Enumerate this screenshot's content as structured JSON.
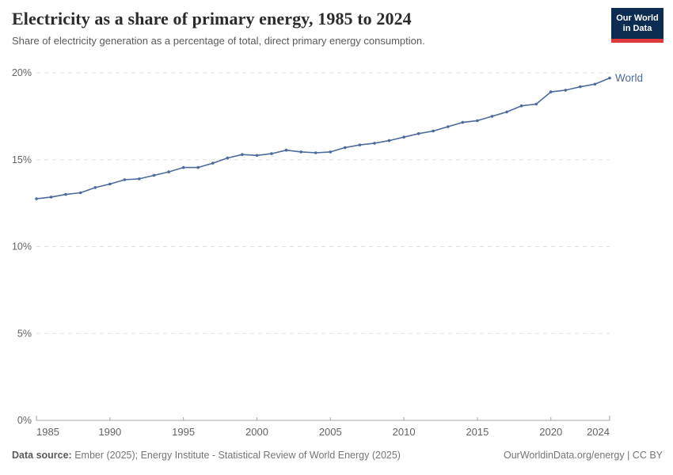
{
  "header": {
    "title": "Electricity as a share of primary energy, 1985 to 2024",
    "subtitle": "Share of electricity generation as a percentage of total, direct primary energy consumption.",
    "logo_line1": "Our World",
    "logo_line2": "in Data"
  },
  "chart_data": {
    "type": "line",
    "title": "Electricity as a share of primary energy, 1985 to 2024",
    "entity_label": "World",
    "line_color": "#4C6A9C",
    "grid": "horizontal-dashed",
    "xlim": [
      1985,
      2024
    ],
    "ylim": [
      0,
      20
    ],
    "xticks": [
      1985,
      1990,
      1995,
      2000,
      2005,
      2010,
      2015,
      2020,
      2024
    ],
    "yticks": [
      {
        "value": 0,
        "label": "0%"
      },
      {
        "value": 5,
        "label": "5%"
      },
      {
        "value": 10,
        "label": "10%"
      },
      {
        "value": 15,
        "label": "15%"
      },
      {
        "value": 20,
        "label": "20%"
      }
    ],
    "series": [
      {
        "name": "World",
        "x": [
          1985,
          1986,
          1987,
          1988,
          1989,
          1990,
          1991,
          1992,
          1993,
          1994,
          1995,
          1996,
          1997,
          1998,
          1999,
          2000,
          2001,
          2002,
          2003,
          2004,
          2005,
          2006,
          2007,
          2008,
          2009,
          2010,
          2011,
          2012,
          2013,
          2014,
          2015,
          2016,
          2017,
          2018,
          2019,
          2020,
          2021,
          2022,
          2023,
          2024
        ],
        "values": [
          12.75,
          12.85,
          13.0,
          13.1,
          13.4,
          13.6,
          13.85,
          13.9,
          14.1,
          14.3,
          14.55,
          14.55,
          14.8,
          15.1,
          15.3,
          15.25,
          15.35,
          15.55,
          15.45,
          15.4,
          15.45,
          15.7,
          15.85,
          15.95,
          16.1,
          16.3,
          16.5,
          16.65,
          16.9,
          17.15,
          17.25,
          17.5,
          17.75,
          18.1,
          18.2,
          18.9,
          19.0,
          19.2,
          19.35,
          19.7
        ]
      }
    ]
  },
  "footer": {
    "source_label": "Data source:",
    "source_text": "Ember (2025); Energy Institute - Statistical Review of World Energy (2025)",
    "license_text": "OurWorldinData.org/energy | CC BY"
  },
  "colors": {
    "line": "#4C6A9C",
    "gridline": "#e0e0e0",
    "axis": "#a5a5a5",
    "tick_label": "#636363",
    "logo_bg": "#0d2c51",
    "logo_bar": "#e0393b"
  }
}
